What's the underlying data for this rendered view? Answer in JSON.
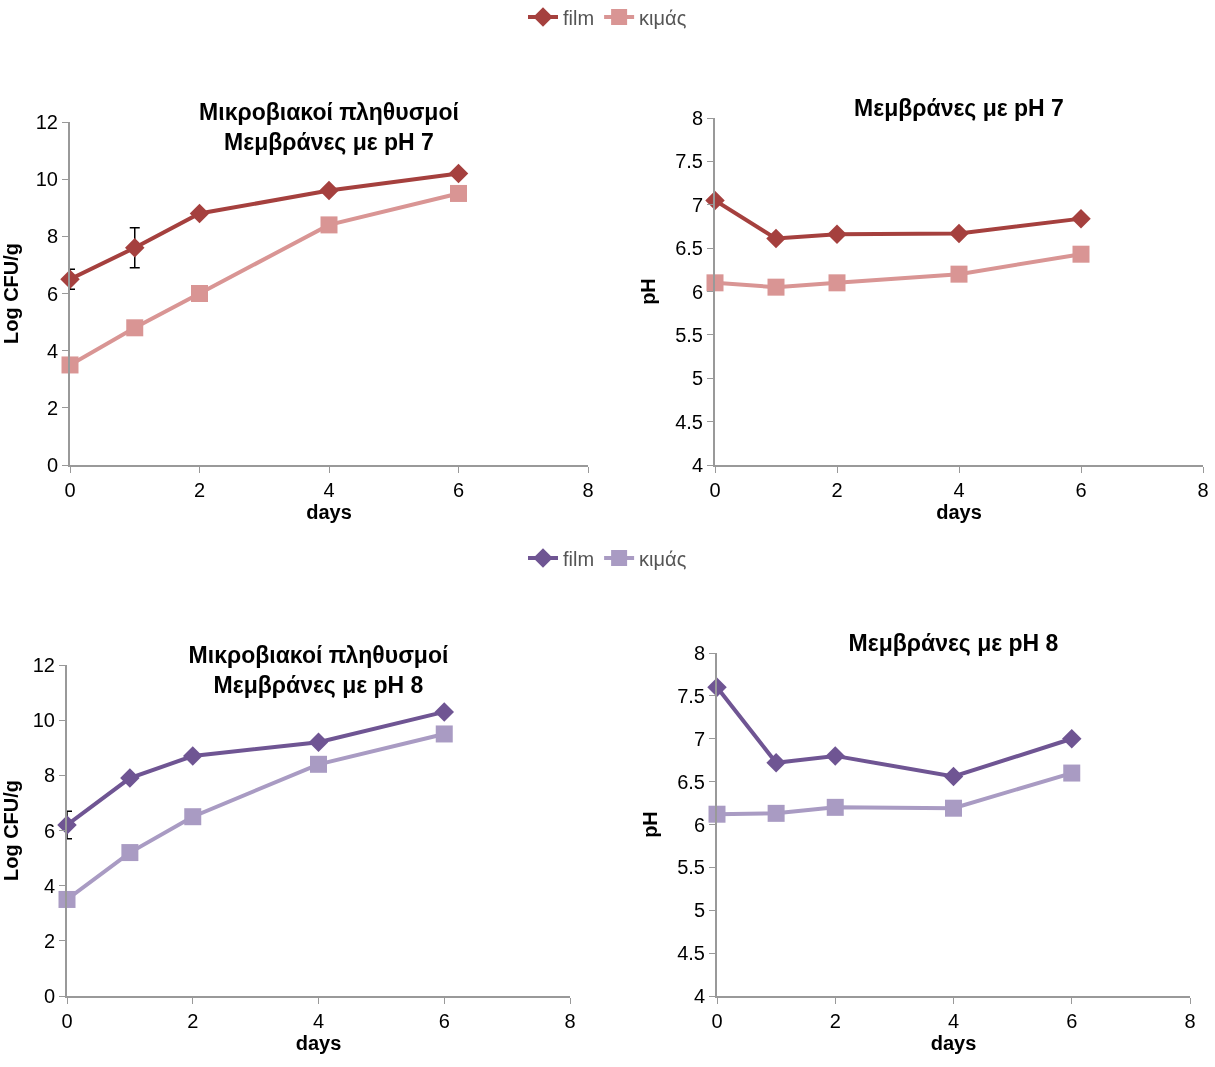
{
  "chart_data": [
    {
      "type": "line",
      "title": "Μικροβιακοί πληθυσμοί\nΜεμβράνες με pH 7",
      "xlabel": "days",
      "ylabel": "Log CFU/g",
      "x": [
        0,
        1,
        2,
        4,
        6
      ],
      "xlim": [
        0,
        8
      ],
      "xticks": [
        0,
        2,
        4,
        6,
        8
      ],
      "ylim": [
        0,
        12
      ],
      "yticks": [
        0,
        2,
        4,
        6,
        8,
        10,
        12
      ],
      "grid": false,
      "legend": "top",
      "series": [
        {
          "name": "film",
          "color": "#a5403e",
          "marker": "diamond",
          "values": [
            6.5,
            7.6,
            8.8,
            9.6,
            10.2
          ],
          "errors": [
            0.35,
            0.7,
            null,
            null,
            null
          ]
        },
        {
          "name": "κιμάς",
          "color": "#d99594",
          "marker": "square",
          "values": [
            3.5,
            4.8,
            6.0,
            8.4,
            9.5
          ]
        }
      ]
    },
    {
      "type": "line",
      "title": "Μεμβράνες με pH 7",
      "xlabel": "days",
      "ylabel": "pH",
      "x": [
        0,
        1,
        2,
        4,
        6
      ],
      "xlim": [
        0,
        8
      ],
      "xticks": [
        0,
        2,
        4,
        6,
        8
      ],
      "ylim": [
        4,
        8
      ],
      "yticks": [
        4,
        4.5,
        5,
        5.5,
        6,
        6.5,
        7,
        7.5,
        8
      ],
      "grid": false,
      "legend": false,
      "series": [
        {
          "color": "#a5403e",
          "marker": "diamond",
          "values": [
            7.05,
            6.61,
            6.66,
            6.67,
            6.84
          ]
        },
        {
          "color": "#d99594",
          "marker": "square",
          "values": [
            6.1,
            6.05,
            6.1,
            6.2,
            6.43
          ]
        }
      ]
    },
    {
      "type": "line",
      "title": "Μικροβιακοί πληθυσμοί\nΜεμβράνες με pH 8",
      "xlabel": "days",
      "ylabel": "Log CFU/g",
      "x": [
        0,
        1,
        2,
        4,
        6
      ],
      "xlim": [
        0,
        8
      ],
      "xticks": [
        0,
        2,
        4,
        6,
        8
      ],
      "ylim": [
        0,
        12
      ],
      "yticks": [
        0,
        2,
        4,
        6,
        8,
        10,
        12
      ],
      "grid": false,
      "legend": "top",
      "series": [
        {
          "name": "film",
          "color": "#6f5593",
          "marker": "diamond",
          "values": [
            6.2,
            7.9,
            8.7,
            9.2,
            10.3
          ],
          "errors": [
            0.5,
            null,
            null,
            null,
            null
          ]
        },
        {
          "name": "κιμάς",
          "color": "#a99bc3",
          "marker": "square",
          "values": [
            3.5,
            5.2,
            6.5,
            8.4,
            9.5
          ]
        }
      ]
    },
    {
      "type": "line",
      "title": "Μεμβράνες με pH 8",
      "xlabel": "days",
      "ylabel": "pH",
      "x": [
        0,
        1,
        2,
        4,
        6
      ],
      "xlim": [
        0,
        8
      ],
      "xticks": [
        0,
        2,
        4,
        6,
        8
      ],
      "ylim": [
        4,
        8
      ],
      "yticks": [
        4,
        4.5,
        5,
        5.5,
        6,
        6.5,
        7,
        7.5,
        8
      ],
      "grid": false,
      "legend": false,
      "series": [
        {
          "color": "#6f5593",
          "marker": "diamond",
          "values": [
            7.6,
            6.72,
            6.8,
            6.56,
            7.0
          ]
        },
        {
          "color": "#a99bc3",
          "marker": "square",
          "values": [
            6.12,
            6.13,
            6.2,
            6.19,
            6.6
          ]
        }
      ]
    }
  ]
}
